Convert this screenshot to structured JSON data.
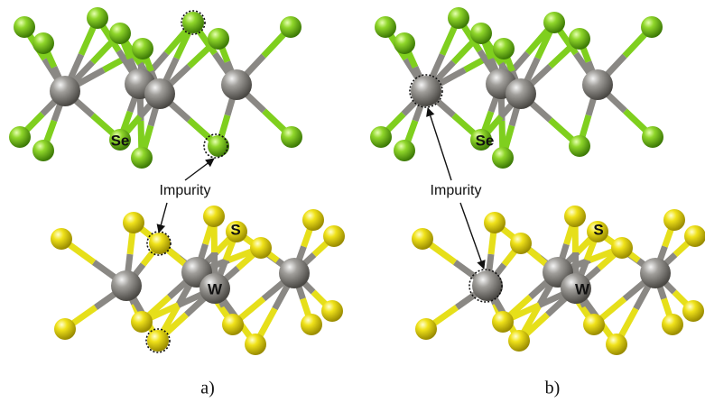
{
  "panels": [
    {
      "label": "a)",
      "impurity_label": "Impurity",
      "atom_labels": [
        "Se",
        "S",
        "W"
      ]
    },
    {
      "label": "b)",
      "impurity_label": "Impurity",
      "atom_labels": [
        "Se",
        "S",
        "W"
      ]
    }
  ]
}
